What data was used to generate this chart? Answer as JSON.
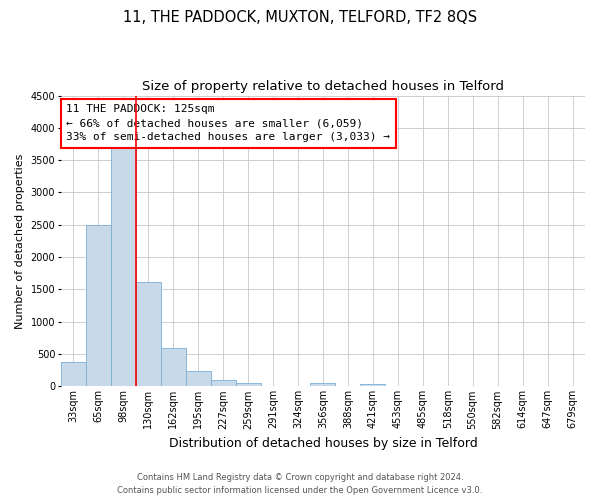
{
  "title": "11, THE PADDOCK, MUXTON, TELFORD, TF2 8QS",
  "subtitle": "Size of property relative to detached houses in Telford",
  "xlabel": "Distribution of detached houses by size in Telford",
  "ylabel": "Number of detached properties",
  "categories": [
    "33sqm",
    "65sqm",
    "98sqm",
    "130sqm",
    "162sqm",
    "195sqm",
    "227sqm",
    "259sqm",
    "291sqm",
    "324sqm",
    "356sqm",
    "388sqm",
    "421sqm",
    "453sqm",
    "485sqm",
    "518sqm",
    "550sqm",
    "582sqm",
    "614sqm",
    "647sqm",
    "679sqm"
  ],
  "values": [
    380,
    2500,
    3700,
    1620,
    600,
    240,
    100,
    55,
    0,
    0,
    55,
    0,
    30,
    0,
    0,
    0,
    0,
    0,
    0,
    0,
    0
  ],
  "bar_color": "#c8daea",
  "bar_edge_color": "#7bafd4",
  "vline_color": "red",
  "vline_pos": 2.5,
  "ylim": [
    0,
    4500
  ],
  "yticks": [
    0,
    500,
    1000,
    1500,
    2000,
    2500,
    3000,
    3500,
    4000,
    4500
  ],
  "annotation_box_text": "11 THE PADDOCK: 125sqm\n← 66% of detached houses are smaller (6,059)\n33% of semi-detached houses are larger (3,033) →",
  "annotation_box_color": "red",
  "footer_line1": "Contains HM Land Registry data © Crown copyright and database right 2024.",
  "footer_line2": "Contains public sector information licensed under the Open Government Licence v3.0.",
  "background_color": "#ffffff",
  "grid_color": "#c8c8c8",
  "title_fontsize": 10.5,
  "subtitle_fontsize": 9.5,
  "ylabel_fontsize": 8,
  "xlabel_fontsize": 9,
  "tick_fontsize": 7,
  "footer_fontsize": 6,
  "annot_fontsize": 8
}
